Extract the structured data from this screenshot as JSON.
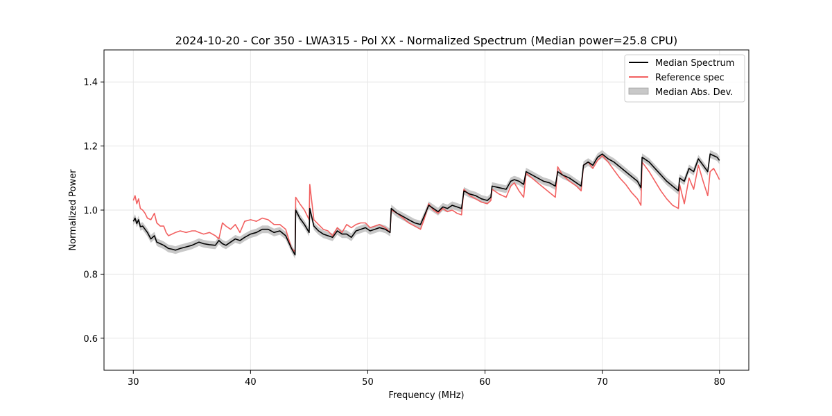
{
  "chart_data": {
    "type": "line",
    "title": "2024-10-20 - Cor 350 - LWA315 - Pol XX - Normalized Spectrum (Median power=25.8 CPU)",
    "xlabel": "Frequency (MHz)",
    "ylabel": "Normalized Power",
    "xlim": [
      27.5,
      82.5
    ],
    "ylim": [
      0.5,
      1.5
    ],
    "xticks": [
      30,
      40,
      50,
      60,
      70,
      80
    ],
    "yticks": [
      0.6,
      0.8,
      1.0,
      1.2,
      1.4
    ],
    "xtick_labels": [
      "30",
      "40",
      "50",
      "60",
      "70",
      "80"
    ],
    "ytick_labels": [
      "0.6",
      "0.8",
      "1.0",
      "1.2",
      "1.4"
    ],
    "grid": true,
    "legend_position": "top-right",
    "colors": {
      "median": "#000000",
      "reference": "#f26060",
      "mad_fill": "#c8c8c8"
    },
    "legend": [
      {
        "label": "Median Spectrum",
        "kind": "line",
        "color": "#000000"
      },
      {
        "label": "Reference spec",
        "kind": "line",
        "color": "#f26060"
      },
      {
        "label": "Median Abs. Dev.",
        "kind": "patch",
        "color": "#c8c8c8"
      }
    ],
    "mad_halfwidth": 0.012,
    "series": [
      {
        "name": "Median Spectrum",
        "x": [
          30.0,
          30.15,
          30.3,
          30.45,
          30.6,
          30.8,
          31.0,
          31.2,
          31.5,
          31.8,
          32.0,
          32.3,
          32.6,
          32.8,
          33.0,
          33.3,
          33.6,
          34.0,
          34.5,
          35.0,
          35.3,
          35.6,
          36.0,
          36.5,
          37.0,
          37.3,
          37.6,
          37.9,
          38.3,
          38.7,
          39.1,
          39.5,
          40.0,
          40.5,
          41.0,
          41.5,
          42.0,
          42.5,
          43.0,
          43.5,
          43.8,
          43.85,
          44.2,
          44.6,
          45.0,
          45.05,
          45.4,
          45.8,
          46.2,
          46.6,
          47.0,
          47.4,
          47.8,
          48.2,
          48.6,
          49.0,
          49.4,
          49.8,
          50.2,
          50.6,
          51.0,
          51.5,
          51.9,
          52.0,
          52.5,
          53.0,
          53.5,
          54.0,
          54.5,
          54.8,
          55.2,
          55.6,
          56.0,
          56.4,
          56.8,
          57.2,
          57.6,
          58.0,
          58.2,
          58.7,
          59.2,
          59.7,
          60.2,
          60.5,
          60.6,
          61.2,
          61.8,
          62.2,
          62.5,
          62.9,
          63.3,
          63.5,
          64.0,
          64.5,
          65.0,
          65.5,
          66.0,
          66.2,
          66.6,
          67.2,
          67.8,
          68.2,
          68.4,
          68.8,
          69.2,
          69.6,
          70.0,
          70.5,
          71.0,
          71.5,
          72.0,
          72.5,
          73.0,
          73.3,
          73.4,
          74.0,
          74.5,
          75.0,
          75.5,
          76.0,
          76.5,
          76.6,
          77.0,
          77.4,
          77.8,
          78.2,
          78.6,
          79.0,
          79.2,
          79.5,
          79.8,
          80.0
        ],
        "values": [
          0.965,
          0.975,
          0.958,
          0.97,
          0.948,
          0.95,
          0.94,
          0.93,
          0.91,
          0.92,
          0.9,
          0.895,
          0.89,
          0.885,
          0.88,
          0.878,
          0.875,
          0.88,
          0.885,
          0.89,
          0.895,
          0.9,
          0.895,
          0.892,
          0.89,
          0.905,
          0.895,
          0.89,
          0.9,
          0.91,
          0.905,
          0.915,
          0.925,
          0.93,
          0.94,
          0.94,
          0.93,
          0.935,
          0.92,
          0.88,
          0.86,
          1.0,
          0.975,
          0.955,
          0.93,
          1.005,
          0.95,
          0.935,
          0.925,
          0.92,
          0.915,
          0.935,
          0.925,
          0.925,
          0.915,
          0.935,
          0.94,
          0.945,
          0.935,
          0.94,
          0.945,
          0.94,
          0.93,
          1.005,
          0.99,
          0.98,
          0.97,
          0.96,
          0.955,
          0.98,
          1.015,
          1.005,
          0.995,
          1.01,
          1.005,
          1.015,
          1.01,
          1.005,
          1.06,
          1.05,
          1.045,
          1.035,
          1.03,
          1.04,
          1.075,
          1.07,
          1.065,
          1.09,
          1.095,
          1.09,
          1.08,
          1.12,
          1.11,
          1.1,
          1.09,
          1.085,
          1.075,
          1.12,
          1.11,
          1.1,
          1.085,
          1.075,
          1.14,
          1.15,
          1.14,
          1.165,
          1.175,
          1.16,
          1.15,
          1.135,
          1.12,
          1.105,
          1.09,
          1.07,
          1.165,
          1.15,
          1.13,
          1.11,
          1.09,
          1.075,
          1.06,
          1.1,
          1.09,
          1.13,
          1.12,
          1.16,
          1.14,
          1.12,
          1.175,
          1.17,
          1.165,
          1.155
        ]
      },
      {
        "name": "Reference spec",
        "x": [
          30.0,
          30.15,
          30.3,
          30.45,
          30.6,
          30.8,
          31.0,
          31.2,
          31.5,
          31.8,
          32.0,
          32.3,
          32.6,
          32.8,
          33.0,
          33.3,
          33.6,
          34.0,
          34.5,
          35.0,
          35.3,
          35.6,
          36.0,
          36.5,
          37.0,
          37.3,
          37.6,
          37.9,
          38.3,
          38.7,
          39.1,
          39.5,
          40.0,
          40.5,
          41.0,
          41.5,
          42.0,
          42.5,
          43.0,
          43.5,
          43.8,
          43.85,
          44.2,
          44.6,
          45.0,
          45.05,
          45.4,
          45.8,
          46.2,
          46.6,
          47.0,
          47.4,
          47.8,
          48.2,
          48.6,
          49.0,
          49.4,
          49.8,
          50.2,
          50.6,
          51.0,
          51.5,
          51.9,
          52.0,
          52.5,
          53.0,
          53.5,
          54.0,
          54.5,
          54.8,
          55.2,
          55.6,
          56.0,
          56.4,
          56.8,
          57.2,
          57.6,
          58.0,
          58.2,
          58.7,
          59.2,
          59.7,
          60.2,
          60.5,
          60.6,
          61.2,
          61.8,
          62.2,
          62.5,
          62.9,
          63.3,
          63.5,
          64.0,
          64.5,
          65.0,
          65.5,
          66.0,
          66.2,
          66.6,
          67.2,
          67.8,
          68.2,
          68.4,
          68.8,
          69.2,
          69.6,
          70.0,
          70.5,
          71.0,
          71.5,
          72.0,
          72.5,
          73.0,
          73.3,
          73.4,
          74.0,
          74.5,
          75.0,
          75.5,
          76.0,
          76.5,
          76.6,
          77.0,
          77.4,
          77.8,
          78.2,
          78.6,
          79.0,
          79.2,
          79.5,
          79.8,
          80.0
        ],
        "values": [
          1.03,
          1.045,
          1.02,
          1.035,
          1.005,
          1.0,
          0.99,
          0.975,
          0.97,
          0.99,
          0.96,
          0.95,
          0.95,
          0.93,
          0.92,
          0.925,
          0.93,
          0.935,
          0.93,
          0.935,
          0.935,
          0.93,
          0.925,
          0.93,
          0.92,
          0.91,
          0.96,
          0.95,
          0.94,
          0.955,
          0.93,
          0.965,
          0.97,
          0.965,
          0.975,
          0.97,
          0.955,
          0.955,
          0.94,
          0.88,
          0.87,
          1.04,
          1.02,
          1.0,
          0.97,
          1.08,
          0.97,
          0.955,
          0.94,
          0.935,
          0.92,
          0.945,
          0.93,
          0.955,
          0.945,
          0.955,
          0.96,
          0.96,
          0.945,
          0.95,
          0.955,
          0.945,
          0.93,
          1.0,
          0.99,
          0.975,
          0.96,
          0.95,
          0.94,
          0.97,
          1.02,
          1.0,
          0.99,
          1.005,
          0.995,
          1.0,
          0.99,
          0.985,
          1.065,
          1.045,
          1.035,
          1.025,
          1.02,
          1.03,
          1.065,
          1.05,
          1.04,
          1.075,
          1.085,
          1.06,
          1.04,
          1.115,
          1.1,
          1.085,
          1.07,
          1.055,
          1.04,
          1.135,
          1.11,
          1.09,
          1.075,
          1.06,
          1.14,
          1.15,
          1.13,
          1.155,
          1.17,
          1.15,
          1.125,
          1.1,
          1.08,
          1.055,
          1.035,
          1.015,
          1.15,
          1.12,
          1.09,
          1.06,
          1.035,
          1.015,
          1.005,
          1.08,
          1.02,
          1.1,
          1.065,
          1.14,
          1.09,
          1.045,
          1.12,
          1.13,
          1.11,
          1.095
        ]
      }
    ]
  }
}
